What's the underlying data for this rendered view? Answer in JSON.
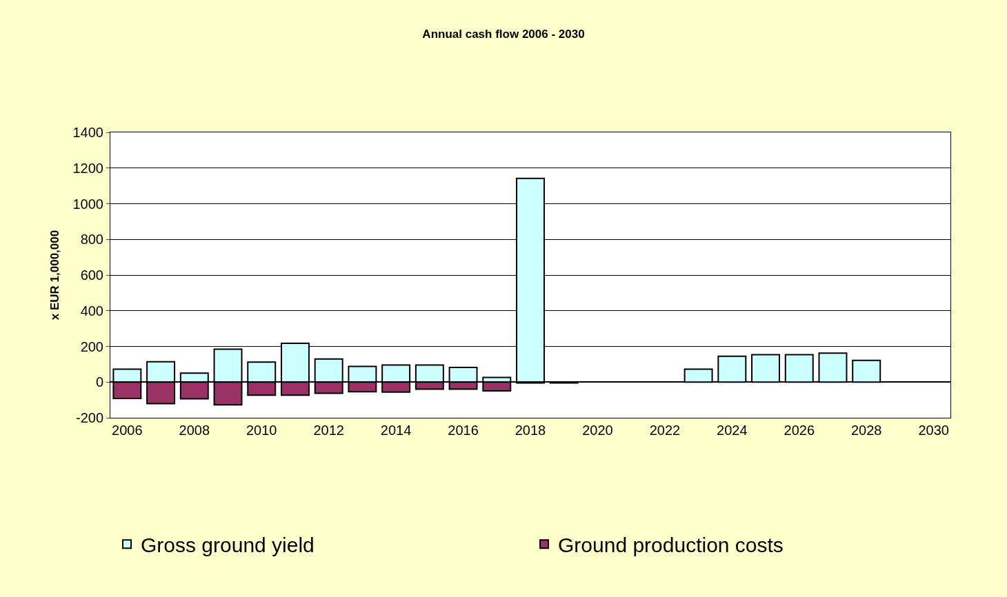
{
  "chart_data": {
    "type": "bar",
    "title": "Annual cash flow 2006 - 2030",
    "ylabel": "x EUR 1,000,000",
    "categories": [
      "2006",
      null,
      "2008",
      null,
      "2010",
      null,
      "2012",
      null,
      "2014",
      null,
      "2016",
      null,
      "2018",
      null,
      "2020",
      null,
      "2022",
      null,
      "2024",
      null,
      "2026",
      null,
      "2028",
      null,
      "2030"
    ],
    "stacked": true,
    "series": [
      {
        "name": "Gross ground yield",
        "color": "#ccffff",
        "values": [
          72,
          114,
          50,
          185,
          112,
          217,
          129,
          88,
          96,
          96,
          82,
          26,
          1142,
          null,
          null,
          null,
          null,
          72,
          145,
          154,
          154,
          162,
          122,
          null,
          null
        ]
      },
      {
        "name": "Ground production costs",
        "color": "#993366",
        "values": [
          -92,
          -121,
          -94,
          -128,
          -73,
          -73,
          -63,
          -54,
          -56,
          -40,
          -40,
          -49,
          -5,
          -5,
          null,
          null,
          null,
          null,
          null,
          null,
          null,
          null,
          null,
          null,
          null
        ]
      }
    ],
    "ylim": [
      -200,
      1400
    ],
    "yticks": [
      -200,
      0,
      200,
      400,
      600,
      800,
      1000,
      1200,
      1400
    ],
    "grid": "y",
    "legend": "bottom"
  }
}
